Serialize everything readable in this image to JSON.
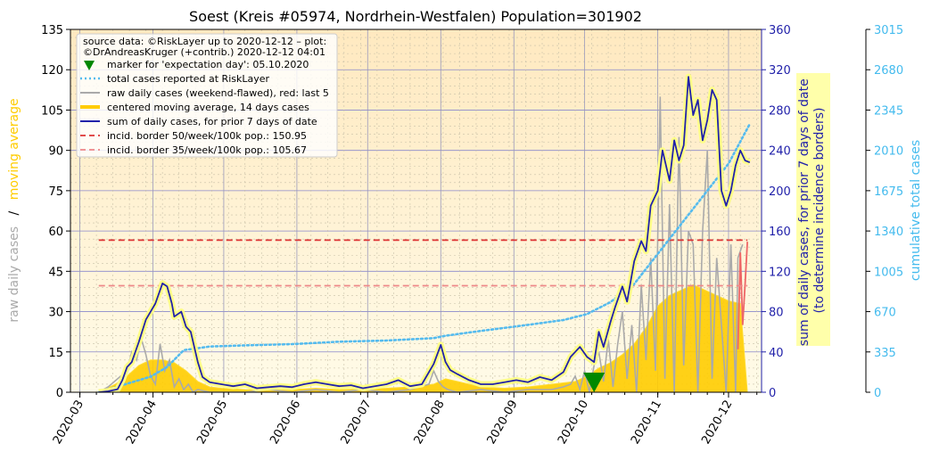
{
  "chart_data": {
    "type": "line",
    "title": "Soest (Kreis #05974, Nordrhein-Westfalen) Population=301902",
    "left_axis": {
      "label_parts": [
        "raw daily cases",
        "/",
        "moving average"
      ],
      "label_colors": [
        "#aaaaaa",
        "#000000",
        "#ffcc00"
      ],
      "ylim": [
        0,
        135
      ],
      "ticks": [
        "0",
        "15",
        "30",
        "45",
        "60",
        "75",
        "90",
        "105",
        "120",
        "135"
      ]
    },
    "right_axis_1": {
      "label_lines": [
        "sum of daily cases, for prior 7 days of date",
        "(to determine incidence borders)"
      ],
      "ylim": [
        0,
        360
      ],
      "ticks": [
        "0",
        "40",
        "80",
        "120",
        "160",
        "200",
        "240",
        "280",
        "320",
        "360"
      ],
      "color": "#2222aa"
    },
    "right_axis_2": {
      "label": "cumulative total cases",
      "ylim": [
        0,
        3015
      ],
      "ticks": [
        "0",
        "335",
        "670",
        "1005",
        "1340",
        "1675",
        "2010",
        "2345",
        "2680",
        "3015"
      ],
      "color": "#44bbee"
    },
    "x_ticks": [
      "2020-03",
      "2020-04",
      "2020-05",
      "2020-06",
      "2020-07",
      "2020-08",
      "2020-09",
      "2020-10",
      "2020-11",
      "2020-12"
    ],
    "x_tick_day": [
      0,
      31,
      61,
      92,
      122,
      153,
      184,
      214,
      245,
      275
    ],
    "xlim_day": [
      -4,
      289
    ],
    "grid": true,
    "legend_position": "top-left",
    "legend": [
      "source data: ©RiskLayer up to 2020-12-12 – plot:",
      "©DrAndreasKruger (+contrib.) 2020-12-12 04:01",
      "marker for 'expectation day': 05.10.2020",
      "total cases reported at RiskLayer",
      "raw daily cases (weekend-flawed), red: last 5",
      "centered moving average, 14 days cases",
      "sum of daily cases, for prior 7 days of date",
      "incid. border 50/week/100k pop.: 150.95",
      "incid. border 35/week/100k pop.: 105.67"
    ],
    "colors": {
      "raw": "#aaaaaa",
      "raw_last5": "#ee6666",
      "moving_avg": "#ffcc00",
      "sum7": "#2222aa",
      "sum7_glow": "#ffff88",
      "cumulative": "#55bbee",
      "border50": "#dd3333",
      "border35": "#ee8888",
      "marker": "#008800",
      "bg_top": "#ffe9c0",
      "bg_bottom": "#fffbe8"
    },
    "expectation_day": 218,
    "border50_value": 150.95,
    "border35_value": 105.67,
    "border_range_day": [
      8,
      283
    ],
    "cumulative_days": [
      8,
      30,
      37,
      44,
      55,
      70,
      90,
      110,
      130,
      150,
      155,
      170,
      190,
      205,
      215,
      225,
      235,
      245,
      255,
      265,
      275,
      284
    ],
    "cumulative_values": [
      0,
      130,
      210,
      350,
      380,
      390,
      400,
      420,
      430,
      450,
      470,
      510,
      560,
      600,
      650,
      750,
      900,
      1150,
      1400,
      1650,
      1900,
      2230
    ],
    "sum7_days": [
      8,
      12,
      16,
      18,
      20,
      22,
      25,
      28,
      30,
      32,
      35,
      37,
      39,
      40,
      43,
      45,
      47,
      50,
      52,
      55,
      60,
      65,
      70,
      75,
      80,
      85,
      90,
      95,
      100,
      105,
      110,
      115,
      120,
      125,
      130,
      135,
      140,
      145,
      150,
      153,
      155,
      157,
      160,
      165,
      170,
      175,
      180,
      185,
      190,
      195,
      200,
      205,
      208,
      210,
      212,
      215,
      218,
      220,
      222,
      225,
      227,
      230,
      232,
      235,
      238,
      240,
      242,
      245,
      247,
      250,
      252,
      254,
      256,
      258,
      260,
      262,
      264,
      266,
      268,
      270,
      272,
      274,
      276,
      278,
      280,
      282,
      284
    ],
    "sum7_values": [
      0,
      1,
      3,
      12,
      25,
      30,
      50,
      72,
      80,
      88,
      108,
      105,
      88,
      75,
      80,
      65,
      60,
      30,
      15,
      10,
      8,
      6,
      8,
      4,
      5,
      6,
      5,
      8,
      10,
      8,
      6,
      7,
      4,
      6,
      8,
      12,
      6,
      8,
      28,
      47,
      30,
      22,
      18,
      12,
      8,
      8,
      10,
      12,
      10,
      15,
      12,
      20,
      35,
      40,
      45,
      35,
      30,
      60,
      45,
      70,
      85,
      105,
      90,
      130,
      150,
      140,
      185,
      200,
      240,
      210,
      250,
      230,
      245,
      313,
      275,
      290,
      250,
      270,
      300,
      290,
      200,
      185,
      200,
      225,
      240,
      230,
      228
    ],
    "ma_days": [
      8,
      15,
      20,
      25,
      30,
      35,
      40,
      45,
      50,
      55,
      60,
      70,
      80,
      90,
      100,
      110,
      120,
      130,
      140,
      150,
      155,
      160,
      170,
      180,
      190,
      200,
      210,
      215,
      220,
      225,
      230,
      235,
      240,
      245,
      250,
      255,
      260,
      265,
      270,
      275,
      280,
      283
    ],
    "ma_values": [
      0,
      3,
      6,
      10,
      12,
      12,
      11,
      8,
      4,
      2,
      1.5,
      1,
      0.8,
      1,
      1.5,
      1,
      1.2,
      1.5,
      2,
      3,
      5,
      4,
      2,
      1.5,
      2,
      3,
      4,
      6,
      9,
      11,
      14,
      18,
      24,
      32,
      36,
      38,
      40,
      38,
      36,
      34,
      33,
      0
    ],
    "raw_days": [
      8,
      12,
      16,
      20,
      22,
      24,
      26,
      28,
      30,
      32,
      34,
      36,
      38,
      40,
      42,
      44,
      46,
      48,
      50,
      55,
      60,
      70,
      80,
      90,
      100,
      110,
      120,
      130,
      140,
      148,
      150,
      152,
      154,
      156,
      160,
      170,
      180,
      190,
      200,
      205,
      208,
      210,
      212,
      214,
      216,
      218,
      220,
      222,
      224,
      226,
      228,
      230,
      232,
      234,
      236,
      238,
      240,
      242,
      244,
      246,
      248,
      250,
      252,
      254,
      256,
      258,
      260,
      262,
      264,
      266,
      268,
      270,
      272,
      274,
      276,
      278,
      279,
      281
    ],
    "raw_values": [
      0,
      2,
      5,
      8,
      15,
      12,
      20,
      14,
      6,
      3,
      18,
      8,
      12,
      2,
      5,
      1,
      3,
      0,
      1,
      0,
      0,
      0,
      1,
      0,
      1,
      0,
      1,
      0,
      1,
      3,
      8,
      4,
      2,
      1,
      0,
      1,
      0,
      1,
      1,
      2,
      3,
      6,
      1,
      8,
      0,
      10,
      15,
      4,
      20,
      2,
      18,
      30,
      5,
      25,
      0,
      40,
      12,
      50,
      8,
      110,
      5,
      70,
      0,
      95,
      10,
      60,
      55,
      0,
      60,
      90,
      5,
      50,
      25,
      0,
      55,
      0,
      50,
      55
    ],
    "raw_last5_days": [
      279,
      280,
      281,
      282,
      283
    ],
    "raw_last5_values": [
      16,
      52,
      25,
      40,
      56
    ]
  }
}
